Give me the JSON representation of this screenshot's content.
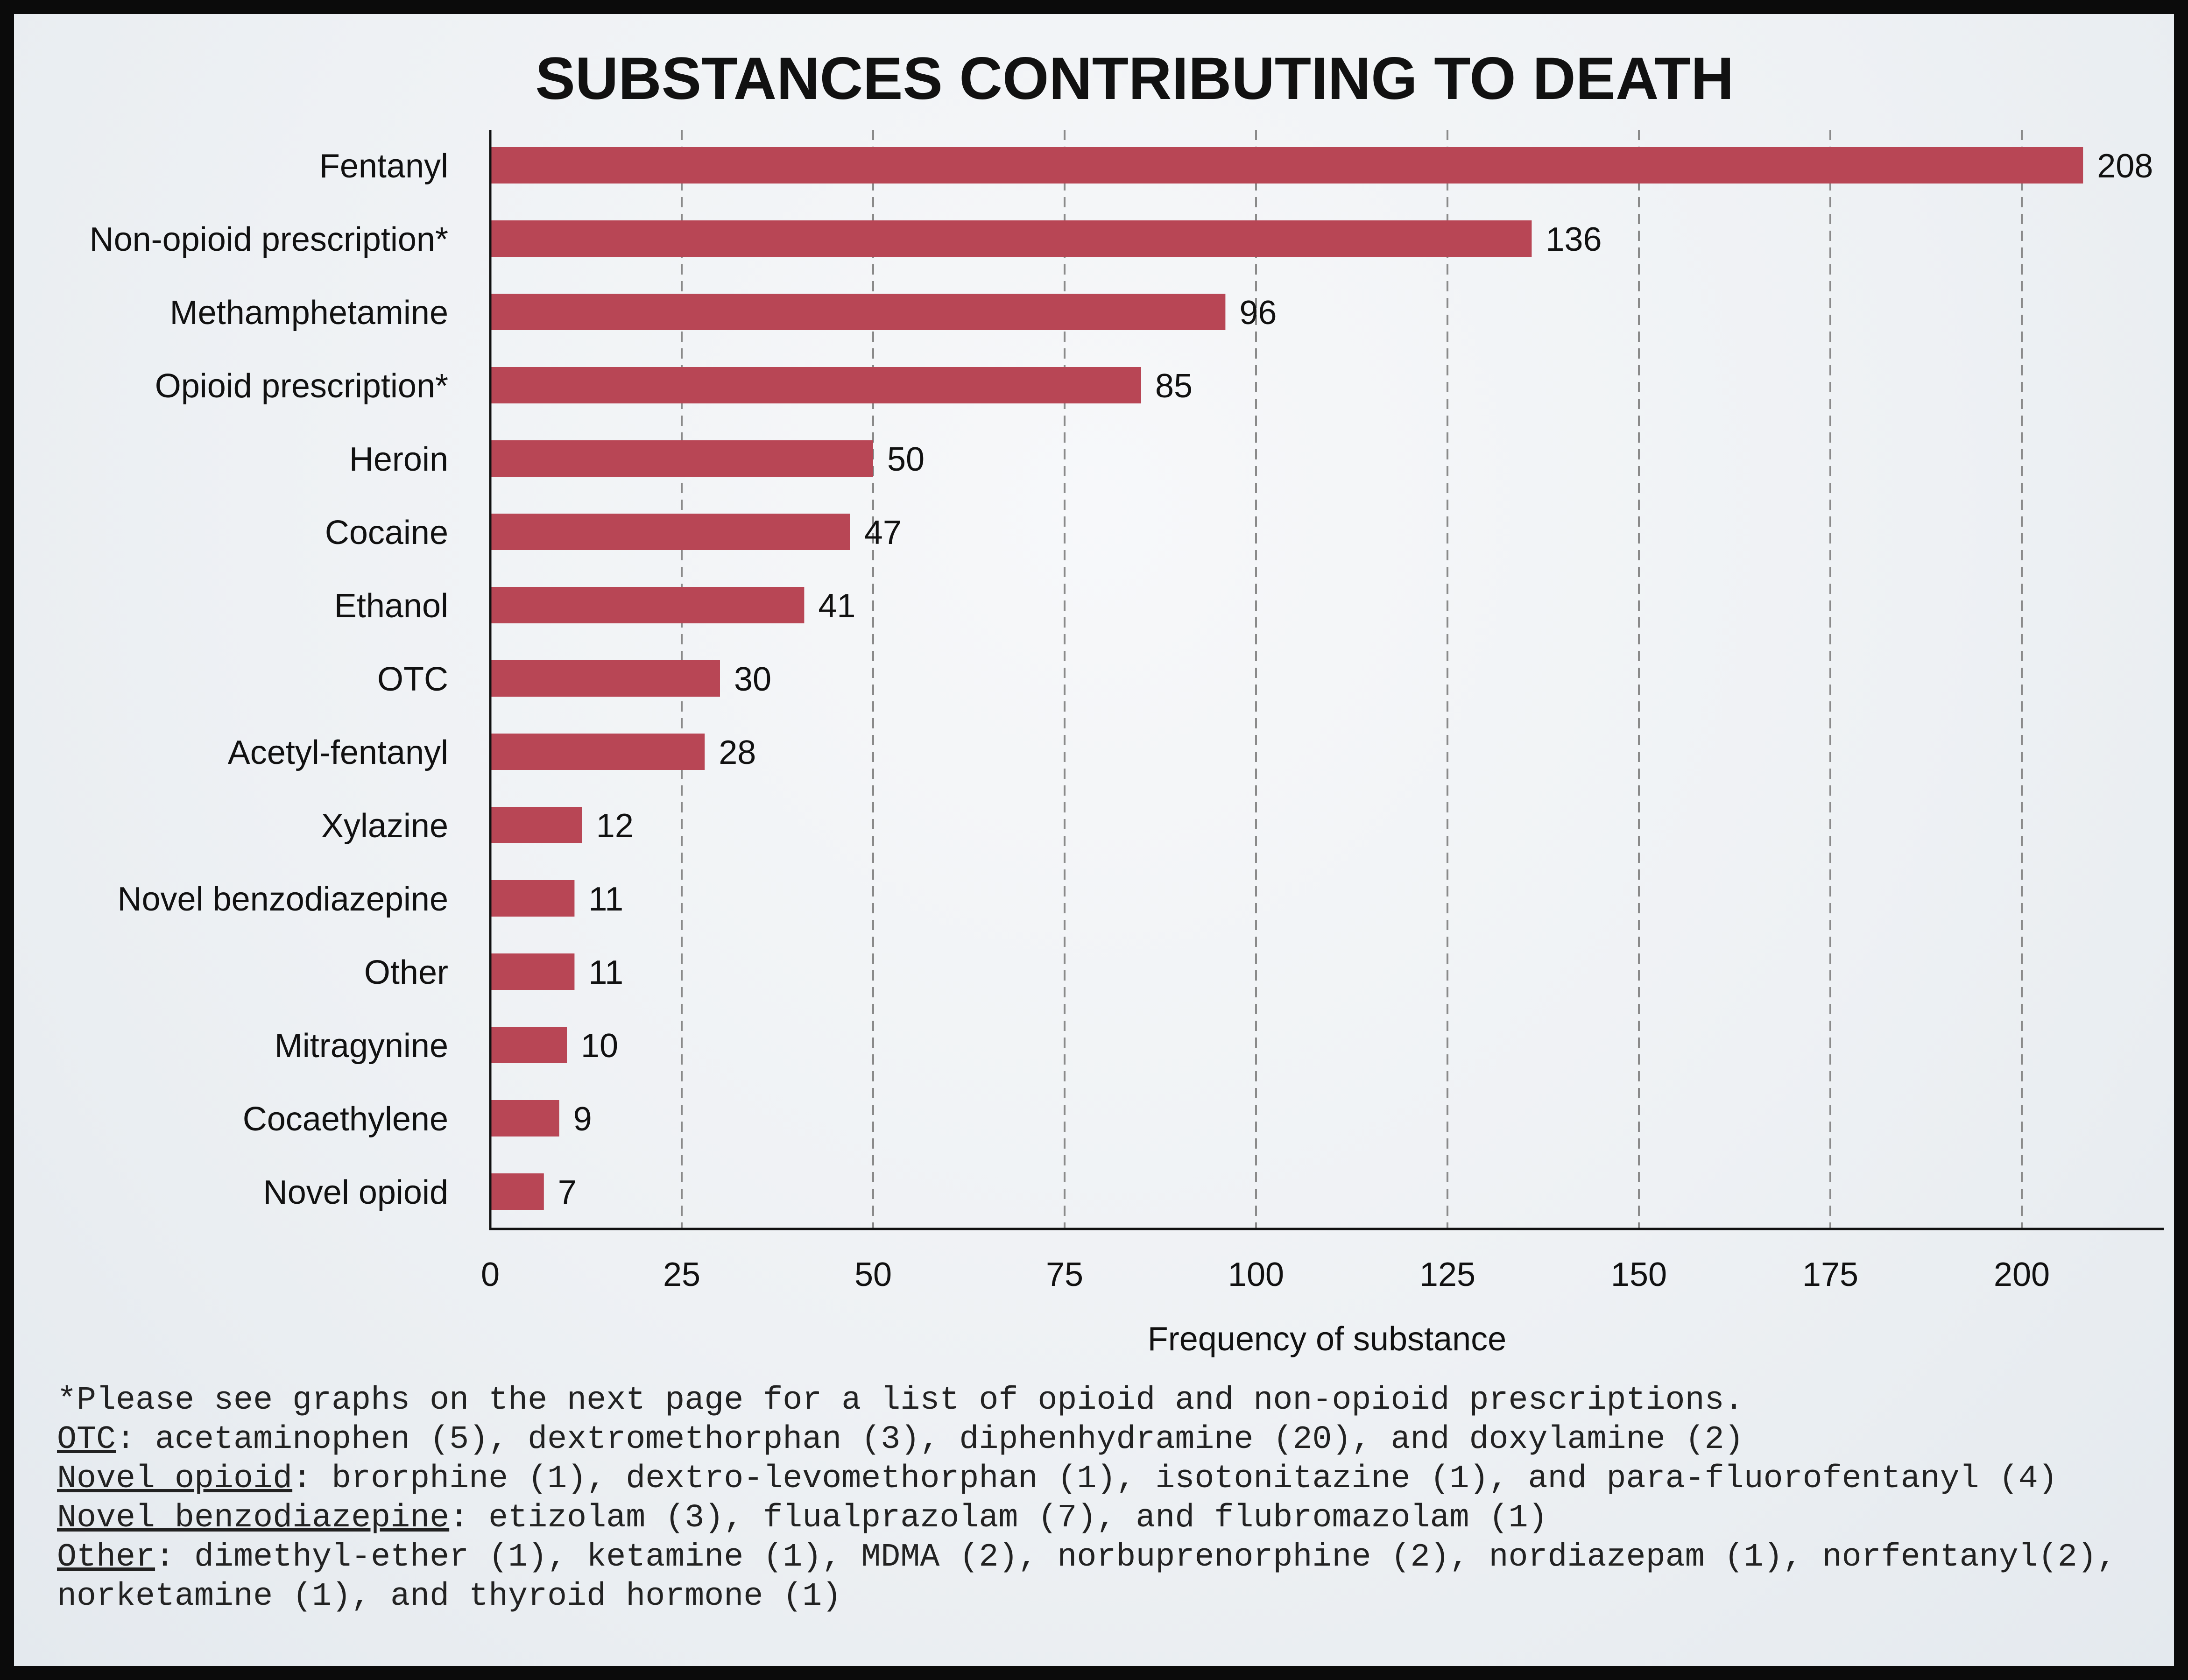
{
  "chart_data": {
    "type": "bar",
    "orientation": "horizontal",
    "title": "SUBSTANCES CONTRIBUTING TO DEATH",
    "xlabel": "Frequency of substance",
    "ylabel": "",
    "xlim": [
      0,
      220
    ],
    "xticks": [
      0,
      25,
      50,
      75,
      100,
      125,
      150,
      175,
      200
    ],
    "grid": "vertical dashed",
    "bar_color": "#b84655",
    "categories": [
      "Fentanyl",
      "Non-opioid prescription*",
      "Methamphetamine",
      "Opioid prescription*",
      "Heroin",
      "Cocaine",
      "Ethanol",
      "OTC",
      "Acetyl-fentanyl",
      "Xylazine",
      "Novel benzodiazepine",
      "Other",
      "Mitragynine",
      "Cocaethylene",
      "Novel opioid"
    ],
    "values": [
      208,
      136,
      96,
      85,
      50,
      47,
      41,
      30,
      28,
      12,
      11,
      11,
      10,
      9,
      7
    ]
  },
  "notes": {
    "line1": "*Please see graphs on the next page for a list of opioid and non-opioid prescriptions.",
    "otc_term": "OTC",
    "otc_text": ": acetaminophen (5), dextromethorphan (3), diphenhydramine (20), and doxylamine (2)",
    "novel_opioid_term": "Novel opioid",
    "novel_opioid_text": ": brorphine (1), dextro-levomethorphan (1), isotonitazine (1), and para-fluorofentanyl (4)",
    "novel_benzo_term": "Novel benzodiazepine",
    "novel_benzo_text": ": etizolam (3), flualprazolam (7), and flubromazolam (1)",
    "other_term": "Other",
    "other_text": ": dimethyl-ether (1), ketamine (1), MDMA (2), norbuprenorphine (2), nordiazepam (1), norfentanyl(2), norketamine (1), and thyroid hormone (1)"
  }
}
